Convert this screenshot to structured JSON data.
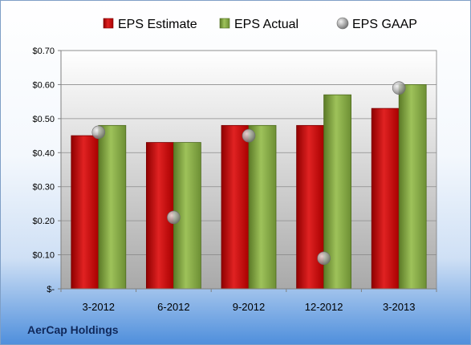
{
  "company": "AerCap Holdings",
  "chart_data": {
    "type": "bar",
    "categories": [
      "3-2012",
      "6-2012",
      "9-2012",
      "12-2012",
      "3-2013"
    ],
    "series": [
      {
        "name": "EPS Estimate",
        "kind": "bar",
        "color": "#c00000",
        "values": [
          0.45,
          0.43,
          0.48,
          0.48,
          0.53
        ]
      },
      {
        "name": "EPS Actual",
        "kind": "bar",
        "color": "#77933c",
        "values": [
          0.48,
          0.43,
          0.48,
          0.57,
          0.6
        ]
      },
      {
        "name": "EPS GAAP",
        "kind": "marker",
        "color": "#a6a6a6",
        "values": [
          0.46,
          0.21,
          0.45,
          0.09,
          0.59
        ]
      }
    ],
    "ylim": [
      0,
      0.7
    ],
    "yticks": [
      0,
      0.1,
      0.2,
      0.3,
      0.4,
      0.5,
      0.6,
      0.7
    ],
    "ytick_labels": [
      "$-",
      "$0.10",
      "$0.20",
      "$0.30",
      "$0.40",
      "$0.50",
      "$0.60",
      "$0.70"
    ],
    "legend_position": "top",
    "grid": true
  }
}
